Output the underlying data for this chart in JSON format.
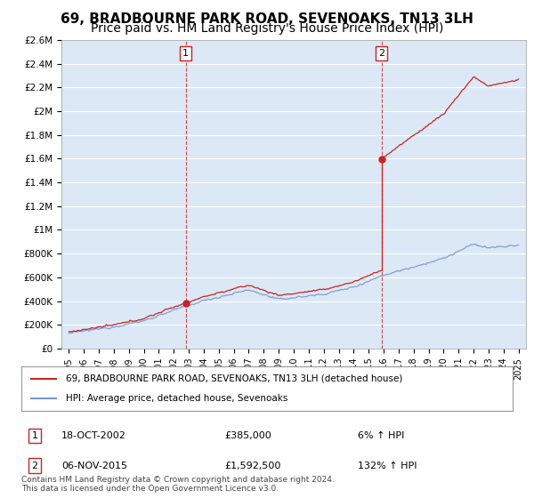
{
  "title": "69, BRADBOURNE PARK ROAD, SEVENOAKS, TN13 3LH",
  "subtitle": "Price paid vs. HM Land Registry's House Price Index (HPI)",
  "ylim": [
    0,
    2600000
  ],
  "yticks": [
    0,
    200000,
    400000,
    600000,
    800000,
    1000000,
    1200000,
    1400000,
    1600000,
    1800000,
    2000000,
    2200000,
    2400000,
    2600000
  ],
  "ytick_labels": [
    "£0",
    "£200K",
    "£400K",
    "£600K",
    "£800K",
    "£1M",
    "£1.2M",
    "£1.4M",
    "£1.6M",
    "£1.8M",
    "£2M",
    "£2.2M",
    "£2.4M",
    "£2.6M"
  ],
  "hpi_color": "#7799cc",
  "price_color": "#cc2222",
  "bg_band_color": "#dce8f5",
  "grid_color": "#cccccc",
  "transaction1": {
    "date": "18-OCT-2002",
    "price": 385000,
    "pct": "6%",
    "label": "1",
    "year": 2002.8
  },
  "transaction2": {
    "date": "06-NOV-2015",
    "price": 1592500,
    "pct": "132%",
    "label": "2",
    "year": 2015.85
  },
  "legend_house_label": "69, BRADBOURNE PARK ROAD, SEVENOAKS, TN13 3LH (detached house)",
  "legend_hpi_label": "HPI: Average price, detached house, Sevenoaks",
  "footnote": "Contains HM Land Registry data © Crown copyright and database right 2024.\nThis data is licensed under the Open Government Licence v3.0.",
  "title_fontsize": 11,
  "subtitle_fontsize": 10,
  "background_color": "#ffffff",
  "xmin": 1994.5,
  "xmax": 2025.5
}
